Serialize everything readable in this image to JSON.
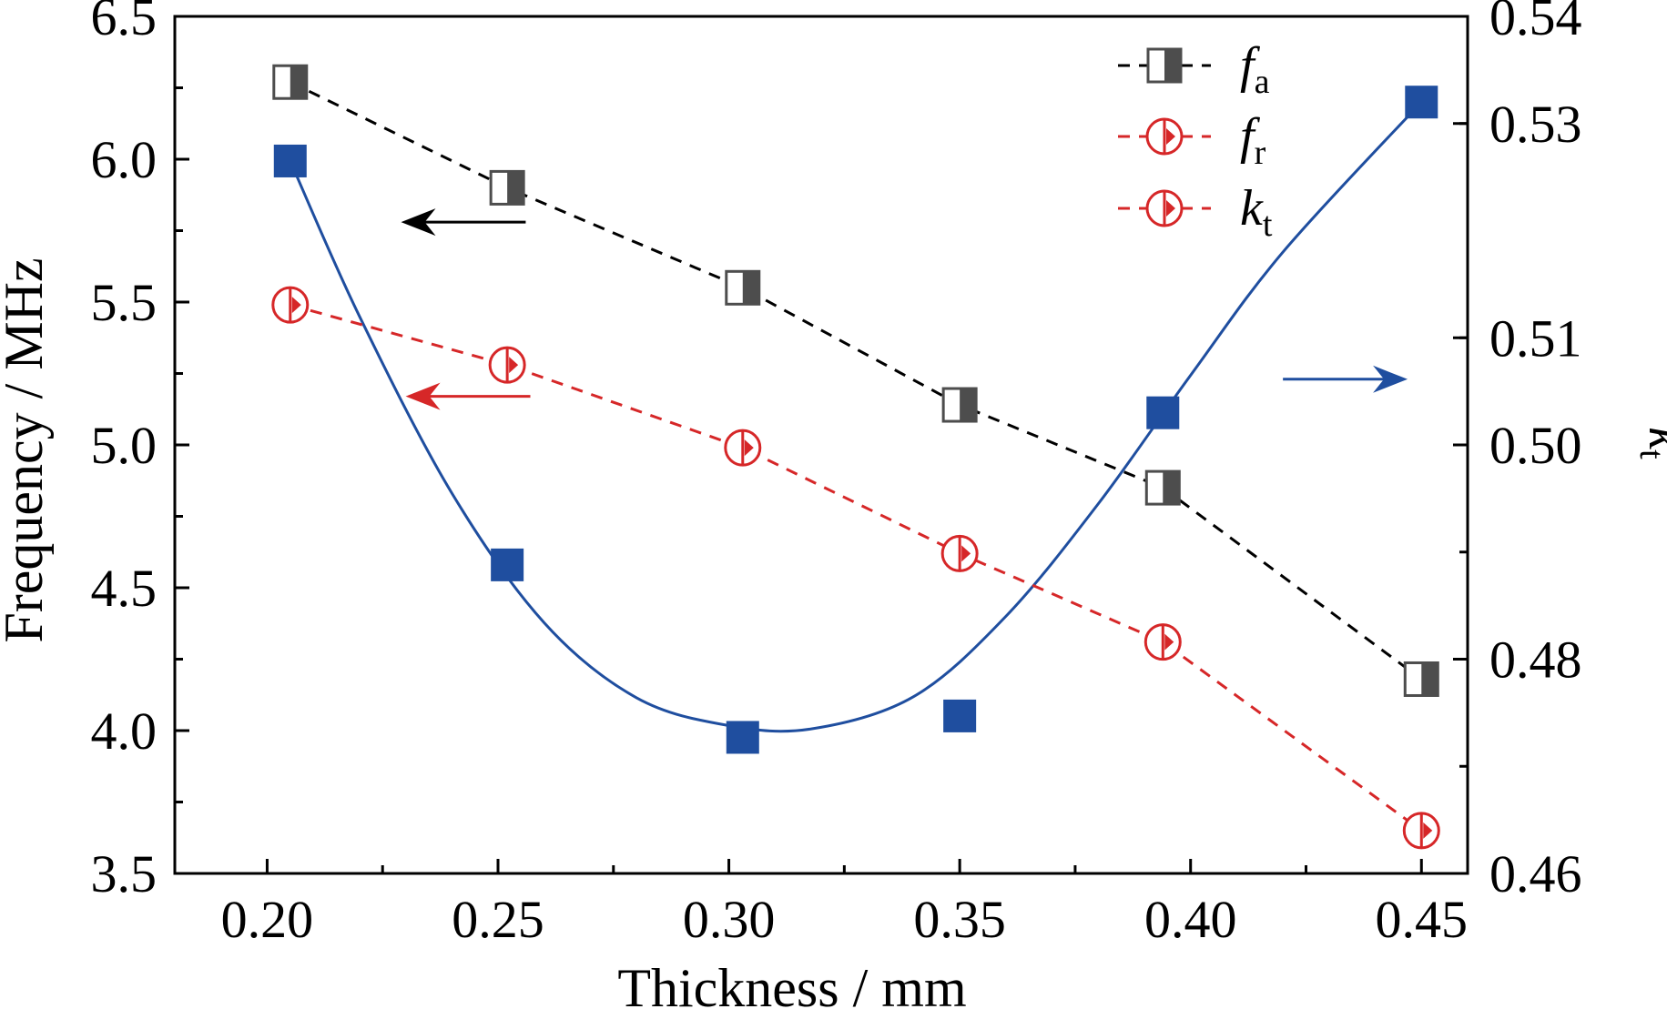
{
  "chart_data": {
    "type": "line",
    "xlabel": "Thickness / mm",
    "ylabel": "Frequency / MHz",
    "y2label": "k",
    "y2label_sub": "t",
    "xlim": [
      0.18,
      0.46
    ],
    "ylim": [
      3.5,
      6.5
    ],
    "y2lim": [
      0.46,
      0.54
    ],
    "x_ticks": [
      "0.20",
      "0.25",
      "0.30",
      "0.35",
      "0.40",
      "0.45"
    ],
    "y_ticks": [
      "3.5",
      "4.0",
      "4.5",
      "5.0",
      "5.5",
      "6.0",
      "6.5"
    ],
    "y2_ticks": [
      "0.46",
      "0.48",
      "0.50",
      "0.51",
      "0.53",
      "0.54"
    ],
    "grid": false,
    "legend_position": "top-right",
    "series": [
      {
        "name": "f",
        "name_sub": "a",
        "axis": "left",
        "x": [
          0.205,
          0.252,
          0.303,
          0.35,
          0.394,
          0.45
        ],
        "y": [
          6.27,
          5.9,
          5.55,
          5.14,
          4.85,
          4.18
        ],
        "color": "#000000",
        "marker": "half-filled-square",
        "line": "dashed"
      },
      {
        "name": "f",
        "name_sub": "r",
        "axis": "left",
        "x": [
          0.205,
          0.252,
          0.303,
          0.35,
          0.394,
          0.45
        ],
        "y": [
          5.49,
          5.28,
          4.99,
          4.62,
          4.31,
          3.65
        ],
        "color": "#d62728",
        "marker": "half-filled-circle",
        "line": "dashed"
      },
      {
        "name": "k",
        "name_sub": "t",
        "axis": "right",
        "x": [
          0.205,
          0.252,
          0.303,
          0.35,
          0.394,
          0.45
        ],
        "y": [
          0.5265,
          0.4888,
          0.4727,
          0.4747,
          0.503,
          0.532
        ],
        "color": "#1f4e9f",
        "marker": "filled-square",
        "line": "solid-fit"
      }
    ],
    "kt_fit": {
      "x": [
        0.205,
        0.22,
        0.24,
        0.26,
        0.28,
        0.3,
        0.318,
        0.34,
        0.36,
        0.38,
        0.4,
        0.42,
        0.45
      ],
      "y": [
        0.5265,
        0.512,
        0.4955,
        0.4834,
        0.4764,
        0.4738,
        0.4735,
        0.4765,
        0.484,
        0.4945,
        0.5065,
        0.518,
        0.532
      ]
    },
    "annotations": [
      {
        "type": "arrow",
        "direction": "left",
        "color": "#000000",
        "x_from": 0.256,
        "x_to": 0.229,
        "y": 5.78,
        "axis": "left"
      },
      {
        "type": "arrow",
        "direction": "left",
        "color": "#d62728",
        "x_from": 0.257,
        "x_to": 0.23,
        "y": 5.17,
        "axis": "left"
      },
      {
        "type": "arrow",
        "direction": "right",
        "color": "#1f4e9f",
        "x_from": 0.42,
        "x_to": 0.447,
        "y": 5.23,
        "axis": "left"
      }
    ]
  }
}
